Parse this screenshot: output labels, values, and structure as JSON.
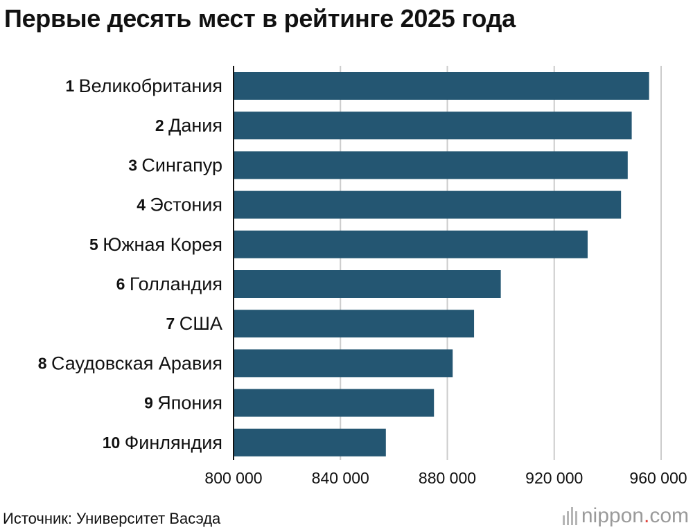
{
  "title": "Первые десять мест в рейтинге 2025 года",
  "source": "Источник: Университет Васэда",
  "brand": {
    "name": "nippon",
    "dot": ".",
    "tld": "com"
  },
  "colors": {
    "bar": "#245672",
    "grid": "#cccccc",
    "axis": "#111111",
    "brand_dot": "#e0443c"
  },
  "chart_data": {
    "type": "bar",
    "orientation": "horizontal",
    "title": "Первые десять мест в рейтинге 2025 года",
    "xlabel": "",
    "ylabel": "",
    "categories": [
      {
        "rank": "1",
        "name": "Великобритания"
      },
      {
        "rank": "2",
        "name": "Дания"
      },
      {
        "rank": "3",
        "name": "Сингапур"
      },
      {
        "rank": "4",
        "name": "Эстония"
      },
      {
        "rank": "5",
        "name": "Южная Корея"
      },
      {
        "rank": "6",
        "name": "Голландия"
      },
      {
        "rank": "7",
        "name": "США"
      },
      {
        "rank": "8",
        "name": "Саудовская Аравия"
      },
      {
        "rank": "9",
        "name": "Япония"
      },
      {
        "rank": "10",
        "name": "Финляндия"
      }
    ],
    "values": [
      955500,
      949000,
      947500,
      945000,
      932500,
      900000,
      890000,
      882000,
      875000,
      857000
    ],
    "xlim": [
      800000,
      960000
    ],
    "xticks": [
      800000,
      840000,
      880000,
      920000,
      960000
    ],
    "xtick_labels": [
      "800 000",
      "840 000",
      "880 000",
      "920 000",
      "960 000"
    ],
    "grid": "vertical"
  }
}
